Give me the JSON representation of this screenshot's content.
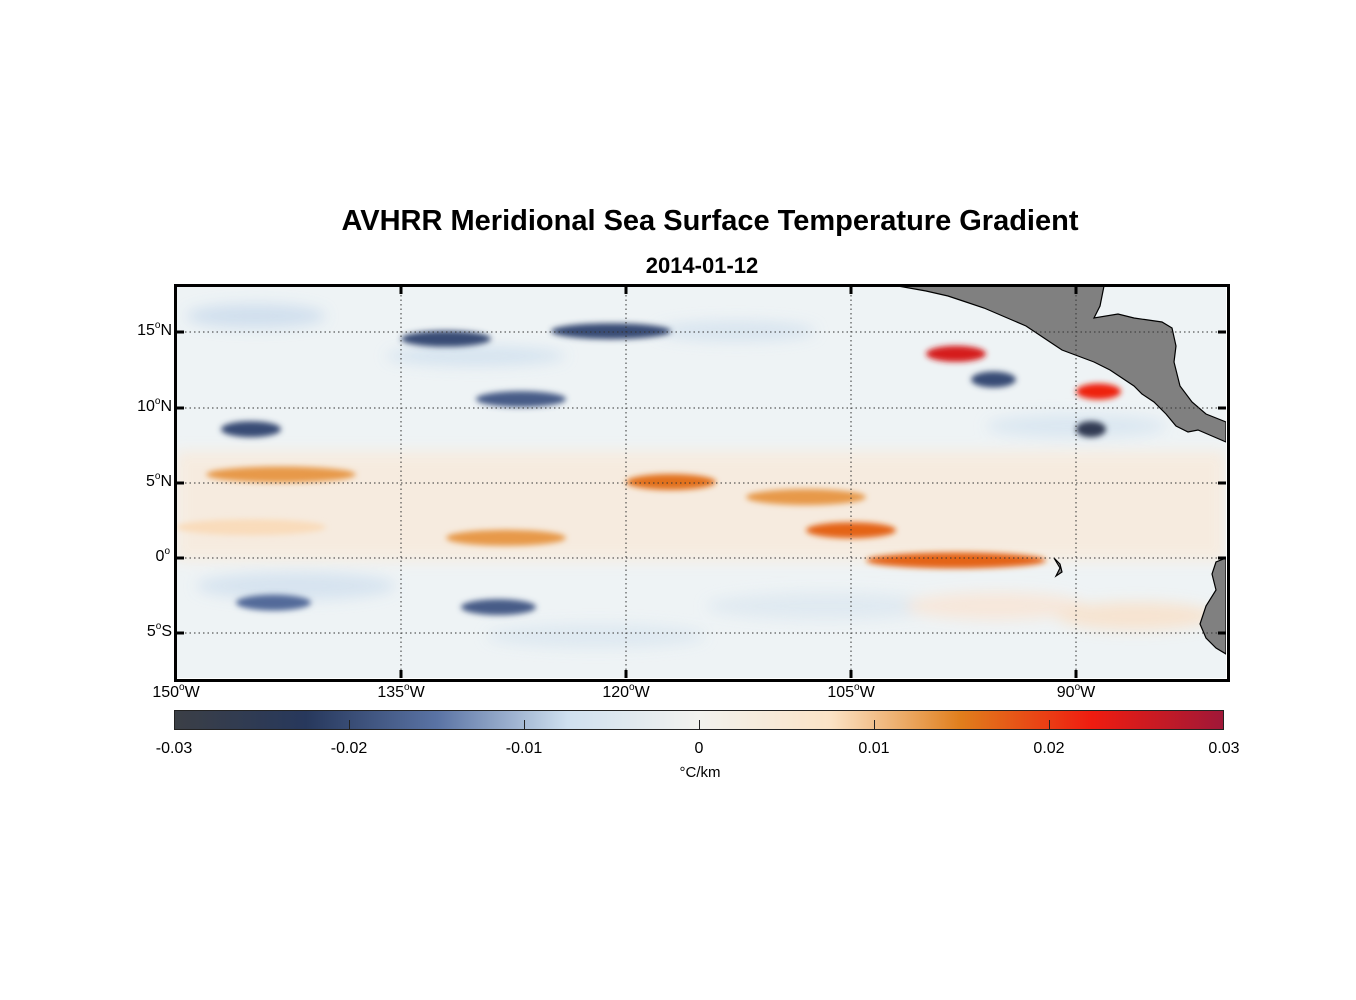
{
  "title": "AVHRR Meridional Sea Surface Temperature Gradient",
  "subtitle": "2014-01-12",
  "map": {
    "projection": "equirectangular",
    "lon_range": [
      -150,
      -80
    ],
    "lat_range": [
      -8,
      18
    ],
    "grid": "dotted",
    "land_color": "#808080",
    "y_ticks": [
      {
        "base": "15",
        "sup": "o",
        "hemi": "N"
      },
      {
        "base": "10",
        "sup": "o",
        "hemi": "N"
      },
      {
        "base": "5",
        "sup": "o",
        "hemi": "N"
      },
      {
        "base": "0",
        "sup": "o",
        "hemi": ""
      },
      {
        "base": "5",
        "sup": "o",
        "hemi": "S"
      }
    ],
    "x_ticks": [
      {
        "base": "150",
        "sup": "o",
        "hemi": "W"
      },
      {
        "base": "135",
        "sup": "o",
        "hemi": "W"
      },
      {
        "base": "120",
        "sup": "o",
        "hemi": "W"
      },
      {
        "base": "105",
        "sup": "o",
        "hemi": "W"
      },
      {
        "base": "90",
        "sup": "o",
        "hemi": "W"
      }
    ]
  },
  "colorbar": {
    "ticks": [
      "-0.03",
      "-0.02",
      "-0.01",
      "0",
      "0.01",
      "0.02",
      "0.03"
    ],
    "unit": "°C/km",
    "stops": [
      "#3b3f46",
      "#27385c",
      "#5a73a4",
      "#cfe0ef",
      "#f2f2ee",
      "#fbe3c6",
      "#e07e1c",
      "#ef1c10",
      "#a01838"
    ]
  },
  "chart_data": {
    "type": "heatmap",
    "title": "AVHRR Meridional Sea Surface Temperature Gradient",
    "subtitle": "2014-01-12",
    "x_range": [
      -150,
      -80
    ],
    "y_range": [
      -8,
      18
    ],
    "color_range": [
      -0.03,
      0.03
    ],
    "color_unit": "°C/km",
    "features": [
      {
        "lon_start": -148,
        "lon_end": -138,
        "lat": 5.5,
        "value": 0.013
      },
      {
        "lon_start": -150,
        "lon_end": -140,
        "lat": 2.0,
        "value": 0.008
      },
      {
        "lon_start": -132,
        "lon_end": -124,
        "lat": 1.3,
        "value": 0.013
      },
      {
        "lon_start": -120,
        "lon_end": -114,
        "lat": 5.0,
        "value": 0.016
      },
      {
        "lon_start": -112,
        "lon_end": -104,
        "lat": 4.0,
        "value": 0.013
      },
      {
        "lon_start": -108,
        "lon_end": -102,
        "lat": 1.8,
        "value": 0.017
      },
      {
        "lon_start": -104,
        "lon_end": -92,
        "lat": -0.2,
        "value": 0.017
      },
      {
        "lon_start": -100,
        "lon_end": -96,
        "lat": 13.5,
        "value": 0.025
      },
      {
        "lon_start": -90,
        "lon_end": -87,
        "lat": 11.0,
        "value": 0.022
      },
      {
        "lon_start": -147,
        "lon_end": -143,
        "lat": 8.5,
        "value": -0.02
      },
      {
        "lon_start": -135,
        "lon_end": -129,
        "lat": 14.5,
        "value": -0.02
      },
      {
        "lon_start": -125,
        "lon_end": -117,
        "lat": 15.0,
        "value": -0.02
      },
      {
        "lon_start": -130,
        "lon_end": -124,
        "lat": 10.5,
        "value": -0.018
      },
      {
        "lon_start": -90,
        "lon_end": -88,
        "lat": 8.5,
        "value": -0.026
      },
      {
        "lon_start": -97,
        "lon_end": -94,
        "lat": 11.8,
        "value": -0.02
      },
      {
        "lon_start": -146,
        "lon_end": -141,
        "lat": -3.0,
        "value": -0.016
      },
      {
        "lon_start": -131,
        "lon_end": -126,
        "lat": -3.3,
        "value": -0.018
      }
    ]
  }
}
